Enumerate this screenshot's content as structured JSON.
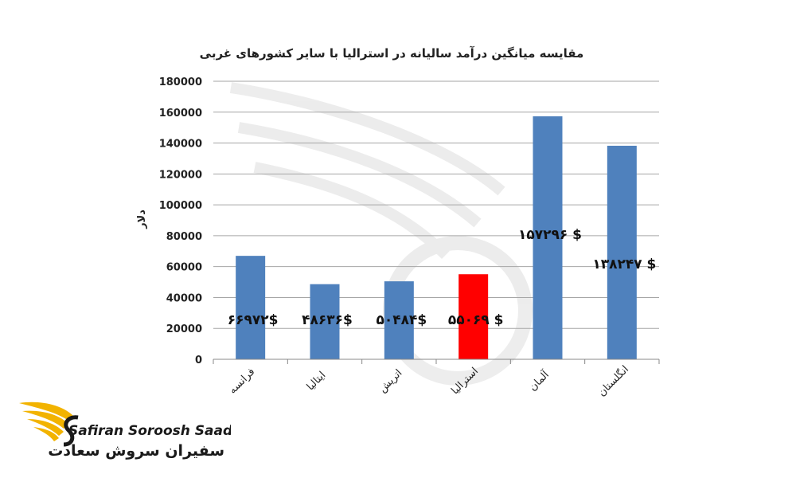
{
  "chart_data": {
    "type": "bar",
    "title": "مقایسه میانگین درآمد سالیانه در استرالیا با سایر کشورهای غربی",
    "ylabel": "دلار",
    "xlabel": "",
    "ylim": [
      0,
      180000
    ],
    "yticks": [
      "0",
      "20000",
      "40000",
      "60000",
      "80000",
      "100000",
      "120000",
      "140000",
      "160000",
      "180000"
    ],
    "grid": true,
    "categories": [
      "فرانسه",
      "ایتالیا",
      "اتریش",
      "استرالیا",
      "آلمان",
      "انگلستان"
    ],
    "values": [
      66972,
      48636,
      50484,
      55069,
      157296,
      138247
    ],
    "data_labels": [
      "۶۶۹۷۲$",
      "۴۸۶۳۶$",
      "۵۰۴۸۴$",
      "۵۵۰۶۹ $",
      "۱۵۷۲۹۶ $",
      "۱۳۸۲۴۷ $"
    ],
    "colors": [
      "#4f81bd",
      "#4f81bd",
      "#4f81bd",
      "#ff0000",
      "#4f81bd",
      "#4f81bd"
    ]
  },
  "brand": {
    "name_en": "Safiran Soroosh Saadat",
    "name_fa": "سفیران سروش سعادت",
    "logo_icon": "winged-s-logo",
    "gold": "#f2b300",
    "dark": "#1a1a1a"
  }
}
